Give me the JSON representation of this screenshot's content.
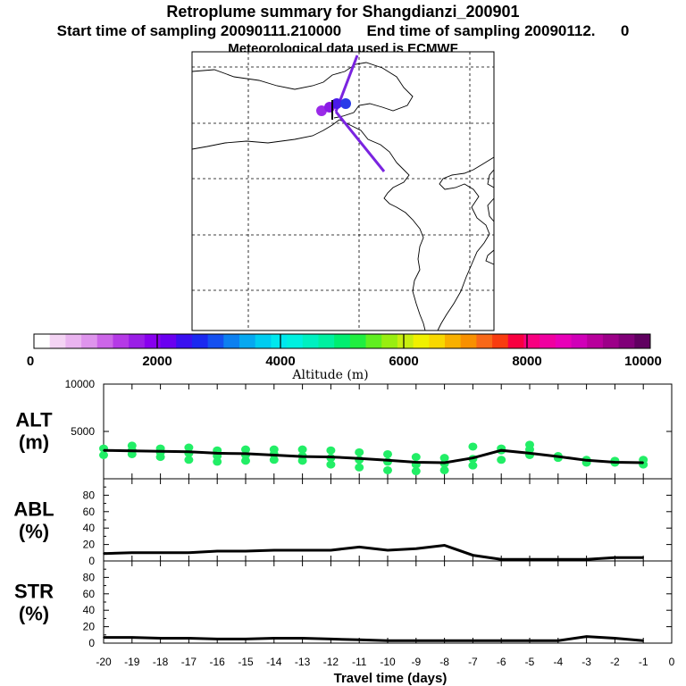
{
  "header": {
    "title": "Retroplume summary for Shangdianzi_200901",
    "sampling": "Start time of sampling 20090111.210000      End time of sampling 20090112.      0",
    "met": "Meteorological data used is ECMWF"
  },
  "colors": {
    "plume_line": "#7a24e0",
    "marker_purple": "#9a2ae8",
    "marker_blue": "#2a3ae8",
    "alt_markers": "#22ee66",
    "series_line": "#000000"
  },
  "colorbar": {
    "title": "Altitude (m)",
    "tick_labels": [
      "0",
      "2000",
      "4000",
      "6000",
      "8000",
      "10000"
    ],
    "colors": [
      "#ffffff",
      "#f4d4f4",
      "#eab4f0",
      "#de94ec",
      "#cc66e8",
      "#b53ae6",
      "#9a1ee6",
      "#8800ee",
      "#6a00f0",
      "#3a10f0",
      "#1a28f0",
      "#1450f0",
      "#0c80f0",
      "#06a8f0",
      "#00ccf0",
      "#00e8ee",
      "#00f0e0",
      "#00f0c0",
      "#00f0a0",
      "#00ee70",
      "#20ee40",
      "#60ee20",
      "#98ee10",
      "#c8ee10",
      "#f0f000",
      "#f8d800",
      "#f8b000",
      "#f89000",
      "#f86818",
      "#f83c10",
      "#f80040",
      "#f80080",
      "#f000a0",
      "#e800b8",
      "#d000b8",
      "#b8009c",
      "#9c0088",
      "#800078",
      "#600060"
    ]
  },
  "map": {
    "description_free": true
  },
  "chart_data": {
    "type": "line",
    "xlabel": "Travel time (days)",
    "x_ticks": [
      -20,
      -19,
      -18,
      -17,
      -16,
      -15,
      -14,
      -13,
      -12,
      -11,
      -10,
      -9,
      -8,
      -7,
      -6,
      -5,
      -4,
      -3,
      -2,
      -1,
      0
    ],
    "x_tick_labels": [
      "-20",
      "-19",
      "-18",
      "-17",
      "-16",
      "-15",
      "-14",
      "-13",
      "-12",
      "-11",
      "-10",
      "-9",
      "-8",
      "-7",
      "-6",
      "-5",
      "-4",
      "-3",
      "-2",
      "-1",
      "0"
    ],
    "xlim": [
      -20,
      0
    ],
    "panels": [
      {
        "name": "ALT",
        "label": "ALT",
        "unit": "(m)",
        "ylim": [
          0,
          10000
        ],
        "y_tick_labels": [
          "10000",
          "5000"
        ],
        "y_ticks": [
          10000,
          5000
        ],
        "series": {
          "x": [
            -20,
            -19,
            -18,
            -17,
            -16,
            -15,
            -14,
            -13,
            -12,
            -11,
            -10,
            -9,
            -8,
            -7,
            -6,
            -5,
            -4,
            -3,
            -2,
            -1
          ],
          "values": [
            3000,
            2950,
            2900,
            2850,
            2700,
            2650,
            2500,
            2350,
            2300,
            2150,
            1950,
            1750,
            1700,
            2200,
            3000,
            2700,
            2350,
            1950,
            1750,
            1700
          ]
        },
        "markers": [
          {
            "x": -20,
            "values": [
              2500,
              3200
            ]
          },
          {
            "x": -19,
            "values": [
              2600,
              3000,
              3500
            ]
          },
          {
            "x": -18,
            "values": [
              2300,
              2800,
              3200
            ]
          },
          {
            "x": -17,
            "values": [
              2000,
              2700,
              3300
            ]
          },
          {
            "x": -16,
            "values": [
              1800,
              2400,
              3000
            ]
          },
          {
            "x": -15,
            "values": [
              1900,
              2500,
              3100
            ]
          },
          {
            "x": -14,
            "values": [
              2000,
              2600,
              3100
            ]
          },
          {
            "x": -13,
            "values": [
              1900,
              2400,
              3100
            ]
          },
          {
            "x": -12,
            "values": [
              1500,
              2200,
              3000
            ]
          },
          {
            "x": -11,
            "values": [
              1200,
              2000,
              2800
            ]
          },
          {
            "x": -10,
            "values": [
              900,
              1800,
              2600
            ]
          },
          {
            "x": -9,
            "values": [
              800,
              1500,
              2300
            ]
          },
          {
            "x": -8,
            "values": [
              900,
              1600,
              2200
            ]
          },
          {
            "x": -7,
            "values": [
              1400,
              2100,
              3400
            ]
          },
          {
            "x": -6,
            "values": [
              2000,
              3000,
              3200
            ]
          },
          {
            "x": -5,
            "values": [
              2500,
              3100,
              3600
            ]
          },
          {
            "x": -4,
            "values": [
              2200,
              2400
            ]
          },
          {
            "x": -3,
            "values": [
              1700,
              2000
            ]
          },
          {
            "x": -2,
            "values": [
              1700,
              1900
            ]
          },
          {
            "x": -1,
            "values": [
              1500,
              2000
            ]
          }
        ]
      },
      {
        "name": "ABL",
        "label": "ABL",
        "unit": "(%)",
        "ylim": [
          0,
          100
        ],
        "y_tick_labels": [
          "80",
          "60",
          "40",
          "20",
          "0"
        ],
        "y_ticks": [
          80,
          60,
          40,
          20,
          0
        ],
        "series": {
          "x": [
            -20,
            -19,
            -18,
            -17,
            -16,
            -15,
            -14,
            -13,
            -12,
            -11,
            -10,
            -9,
            -8,
            -7,
            -6,
            -5,
            -4,
            -3,
            -2,
            -1
          ],
          "values": [
            9,
            10,
            10,
            10,
            12,
            12,
            13,
            13,
            13,
            17,
            13,
            15,
            19,
            7,
            2,
            2,
            2,
            2,
            4,
            4
          ]
        }
      },
      {
        "name": "STR",
        "label": "STR",
        "unit": "(%)",
        "ylim": [
          0,
          100
        ],
        "y_tick_labels": [
          "80",
          "60",
          "40",
          "20",
          "0"
        ],
        "y_ticks": [
          80,
          60,
          40,
          20,
          0
        ],
        "series": {
          "x": [
            -20,
            -19,
            -18,
            -17,
            -16,
            -15,
            -14,
            -13,
            -12,
            -11,
            -10,
            -9,
            -8,
            -7,
            -6,
            -5,
            -4,
            -3,
            -2,
            -1
          ],
          "values": [
            7,
            7,
            6,
            6,
            5,
            5,
            6,
            6,
            5,
            4,
            3,
            3,
            3,
            3,
            3,
            3,
            3,
            8,
            6,
            3
          ]
        }
      }
    ]
  }
}
